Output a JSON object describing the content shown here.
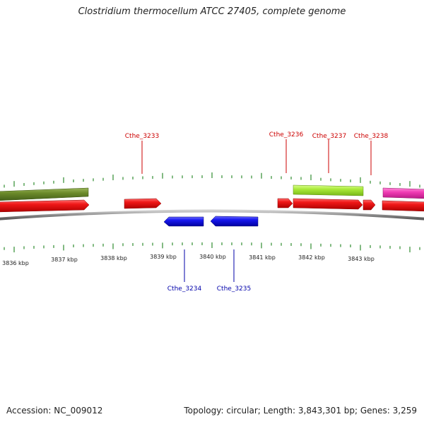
{
  "title": "Clostridium thermocellum ATCC 27405, complete genome",
  "accession": "Accession: NC_009012",
  "topology": "Topology: circular; Length: 3,843,301 bp; Genes: 3,259",
  "colors": {
    "forward_cds": "#e8141a",
    "reverse_cds": "#1a1ae0",
    "olive_feature": "#6b8a2a",
    "lime_feature": "#a8e838",
    "pink_feature": "#f03cb4",
    "backbone": "#8c8c8c",
    "tick": "#2e8b2e",
    "label_red": "#cc0000",
    "label_blue": "#0000aa"
  },
  "scale_labels": [
    "3836 kbp",
    "3837 kbp",
    "3838 kbp",
    "3839 kbp",
    "3840 kbp",
    "3841 kbp",
    "3842 kbp",
    "3843 kbp"
  ],
  "genes_top": [
    {
      "label": "Cthe_3233"
    },
    {
      "label": "Cthe_3236"
    },
    {
      "label": "Cthe_3237"
    },
    {
      "label": "Cthe_3238"
    }
  ],
  "genes_bottom": [
    {
      "label": "Cthe_3234"
    },
    {
      "label": "Cthe_3235"
    }
  ]
}
